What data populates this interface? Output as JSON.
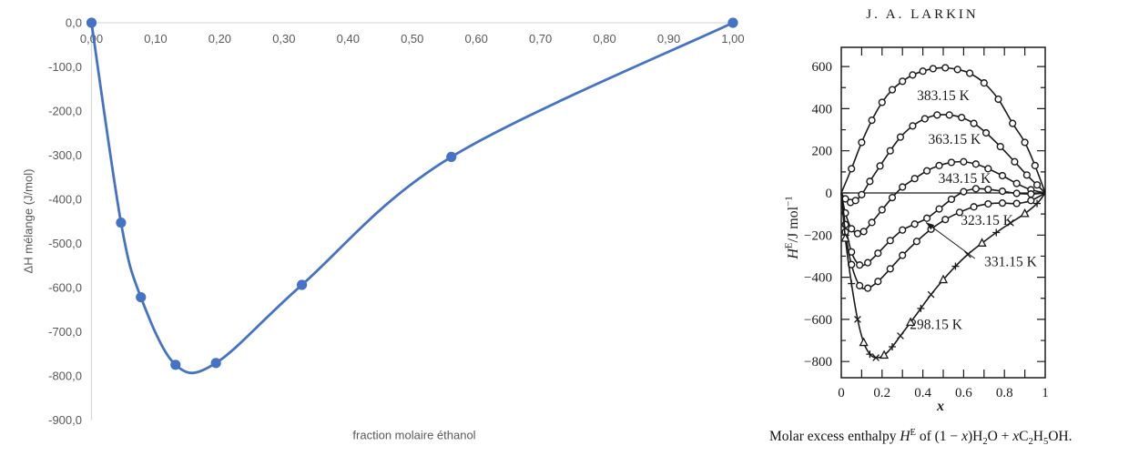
{
  "chart_data": [
    {
      "id": "excel-mixing-enthalpy-chart",
      "type": "scatter",
      "line_style": "smooth",
      "x": [
        0.0,
        0.046,
        0.077,
        0.131,
        0.194,
        0.328,
        0.561,
        1.0
      ],
      "y": [
        0,
        -453,
        -622,
        -775,
        -771,
        -594,
        -304,
        0
      ],
      "xlabel": "fraction molaire éthanol",
      "ylabel": "ΔH mélange (J/mol)",
      "xlim": [
        0,
        1
      ],
      "ylim": [
        -900,
        0
      ],
      "grid": false,
      "legend": "none",
      "x_tick_values": [
        0,
        0.1,
        0.2,
        0.3,
        0.4,
        0.5,
        0.6,
        0.7,
        0.8,
        0.9,
        1.0
      ],
      "x_tick_labels": [
        "0,00",
        "0,10",
        "0,20",
        "0,30",
        "0,40",
        "0,50",
        "0,60",
        "0,70",
        "0,80",
        "0,90",
        "1,00"
      ],
      "y_tick_values": [
        0,
        -100,
        -200,
        -300,
        -400,
        -500,
        -600,
        -700,
        -800,
        -900
      ],
      "y_tick_labels": [
        "0,0",
        "-100,0",
        "-200,0",
        "-300,0",
        "-400,0",
        "-500,0",
        "-600,0",
        "-700,0",
        "-800,0",
        "-900,0"
      ],
      "colors": {
        "series": "#4472C4",
        "axis": "#D9D9D9",
        "text": "#595959"
      }
    },
    {
      "id": "larkin-excess-enthalpy-figure",
      "type": "line",
      "title": "J. A. LARKIN",
      "xlabel": "x",
      "ylabel_segments": [
        {
          "t": "H",
          "i": 1
        },
        {
          "t": "E",
          "sup": 1
        },
        {
          "t": "/J mol"
        },
        {
          "t": "−1",
          "sup": 1
        }
      ],
      "caption_segments": [
        {
          "t": "Molar excess enthalpy "
        },
        {
          "t": "H",
          "i": 1
        },
        {
          "t": "E",
          "sup": 1
        },
        {
          "t": " of (1 − "
        },
        {
          "t": "x",
          "i": 1
        },
        {
          "t": ")H"
        },
        {
          "t": "2",
          "sub": 1
        },
        {
          "t": "O + "
        },
        {
          "t": "x",
          "i": 1
        },
        {
          "t": "C"
        },
        {
          "t": "2",
          "sub": 1
        },
        {
          "t": "H"
        },
        {
          "t": "5",
          "sub": 1
        },
        {
          "t": "OH."
        }
      ],
      "xlim": [
        0,
        1
      ],
      "ylim": [
        -878,
        690
      ],
      "x_tick_values": [
        0,
        0.2,
        0.4,
        0.6,
        0.8,
        1
      ],
      "x_tick_labels": [
        "0",
        "0.2",
        "0.4",
        "0.6",
        "0.8",
        "1"
      ],
      "x_minor_tick_values": [
        0.1,
        0.2,
        0.3,
        0.4,
        0.5,
        0.6,
        0.7,
        0.8,
        0.9
      ],
      "y_tick_values": [
        600,
        400,
        200,
        0,
        -200,
        -400,
        -600,
        -800
      ],
      "y_tick_labels": [
        "600",
        "400",
        "200",
        "0",
        "−200",
        "−400",
        "−600",
        "−800"
      ],
      "y_minor_tick_values": [
        500,
        300,
        100,
        -100,
        -300,
        -500,
        -700
      ],
      "zero_line": true,
      "ink_color": "#1a1a1a",
      "series": [
        {
          "name": "383.15 K",
          "marker": "circle",
          "label_at": [
            0.5,
            462
          ],
          "x": [
            0,
            0.05,
            0.1,
            0.15,
            0.2,
            0.25,
            0.3,
            0.35,
            0.4,
            0.45,
            0.51,
            0.57,
            0.63,
            0.7,
            0.77,
            0.84,
            0.9,
            0.95,
            1
          ],
          "y": [
            0,
            115,
            240,
            345,
            430,
            490,
            530,
            560,
            578,
            590,
            594,
            586,
            568,
            522,
            445,
            330,
            240,
            130,
            0
          ]
        },
        {
          "name": "363.15 K",
          "marker": "circle",
          "label_at": [
            0.555,
            255
          ],
          "x": [
            0,
            0.02,
            0.045,
            0.07,
            0.1,
            0.14,
            0.19,
            0.24,
            0.29,
            0.35,
            0.41,
            0.47,
            0.53,
            0.59,
            0.65,
            0.71,
            0.78,
            0.85,
            0.91,
            0.96,
            1
          ],
          "y": [
            0,
            -28,
            -45,
            -36,
            -8,
            55,
            128,
            200,
            265,
            318,
            352,
            370,
            370,
            358,
            330,
            285,
            220,
            148,
            85,
            38,
            0
          ]
        },
        {
          "name": "343.15 K",
          "marker": "circle",
          "label_at": [
            0.605,
            70
          ],
          "x": [
            0,
            0.02,
            0.05,
            0.08,
            0.11,
            0.15,
            0.2,
            0.25,
            0.3,
            0.36,
            0.42,
            0.48,
            0.54,
            0.6,
            0.66,
            0.72,
            0.79,
            0.86,
            0.93,
            1
          ],
          "y": [
            0,
            -95,
            -170,
            -193,
            -183,
            -140,
            -80,
            -22,
            28,
            68,
            105,
            130,
            145,
            148,
            137,
            115,
            82,
            45,
            15,
            0
          ]
        },
        {
          "name": "331.15 K",
          "marker": "circle",
          "label_at": [
            0.83,
            -327
          ],
          "x": [
            0,
            0.02,
            0.05,
            0.09,
            0.13,
            0.18,
            0.24,
            0.3,
            0.36,
            0.42,
            0.48,
            0.54,
            0.6,
            0.66,
            0.72,
            0.79,
            0.86,
            0.93,
            1
          ],
          "y": [
            0,
            -150,
            -280,
            -342,
            -331,
            -286,
            -226,
            -176,
            -148,
            -120,
            -76,
            -30,
            6,
            20,
            17,
            8,
            -2,
            -5,
            0
          ]
        },
        {
          "name": "323.15 K",
          "marker": "circle",
          "label_at": [
            0.715,
            -130
          ],
          "x": [
            0,
            0.02,
            0.05,
            0.09,
            0.13,
            0.18,
            0.24,
            0.3,
            0.37,
            0.44,
            0.51,
            0.58,
            0.65,
            0.72,
            0.79,
            0.86,
            0.93,
            1
          ],
          "y": [
            0,
            -185,
            -340,
            -440,
            -452,
            -420,
            -360,
            -296,
            -230,
            -172,
            -126,
            -92,
            -66,
            -52,
            -48,
            -50,
            -36,
            0
          ]
        },
        {
          "name": "298.15 K",
          "marker": [
            "cross",
            "triangle",
            "plus"
          ],
          "label_at": [
            0.465,
            -625
          ],
          "x": [
            0,
            0.02,
            0.05,
            0.08,
            0.11,
            0.14,
            0.17,
            0.21,
            0.25,
            0.29,
            0.34,
            0.39,
            0.44,
            0.5,
            0.56,
            0.62,
            0.69,
            0.76,
            0.83,
            0.9,
            0.96,
            1
          ],
          "y": [
            0,
            -215,
            -430,
            -600,
            -710,
            -765,
            -782,
            -770,
            -730,
            -678,
            -614,
            -548,
            -482,
            -412,
            -348,
            -292,
            -238,
            -188,
            -142,
            -98,
            -50,
            0
          ]
        }
      ],
      "annotation_arrow": {
        "label": "331.15 K",
        "from": [
          0.655,
          -311
        ],
        "to": [
          0.415,
          -140
        ]
      }
    }
  ]
}
